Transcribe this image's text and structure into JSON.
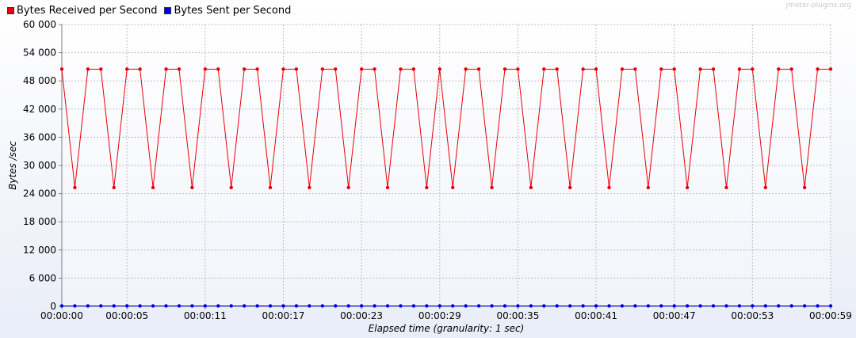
{
  "watermark": "jmeter-plugins.org",
  "colors": {
    "received": "#e8000b",
    "sent": "#0000ee",
    "grid": "#c0c0c0"
  },
  "chart_data": {
    "type": "line",
    "xlabel": "Elapsed time (granularity: 1 sec)",
    "ylabel": "Bytes /sec",
    "ylim": [
      0,
      60000
    ],
    "xlim": [
      0,
      59
    ],
    "yticks": [
      0,
      6000,
      12000,
      18000,
      24000,
      30000,
      36000,
      42000,
      48000,
      54000,
      60000
    ],
    "ytick_labels": [
      "0",
      "6 000",
      "12 000",
      "18 000",
      "24 000",
      "30 000",
      "36 000",
      "42 000",
      "48 000",
      "54 000",
      "60 000"
    ],
    "xticks": [
      0,
      5,
      11,
      17,
      23,
      29,
      35,
      41,
      47,
      53,
      59
    ],
    "xtick_labels": [
      "00:00:00",
      "00:00:05",
      "00:00:11",
      "00:00:17",
      "00:00:23",
      "00:00:29",
      "00:00:35",
      "00:00:41",
      "00:00:47",
      "00:00:53",
      "00:00:59"
    ],
    "grid": true,
    "legend_position": "top-left",
    "series": [
      {
        "name": "Bytes Received per Second",
        "color": "#e8000b",
        "x": [
          0,
          1,
          2,
          3,
          4,
          5,
          6,
          7,
          8,
          9,
          10,
          11,
          12,
          13,
          14,
          15,
          16,
          17,
          18,
          19,
          20,
          21,
          22,
          23,
          24,
          25,
          26,
          27,
          28,
          29,
          30,
          31,
          32,
          33,
          34,
          35,
          36,
          37,
          38,
          39,
          40,
          41,
          42,
          43,
          44,
          45,
          46,
          47,
          48,
          49,
          50,
          51,
          52,
          53,
          54,
          55,
          56,
          57,
          58,
          59
        ],
        "values": [
          50500,
          25300,
          50500,
          50500,
          25300,
          50500,
          50500,
          25300,
          50500,
          50500,
          25300,
          50500,
          50500,
          25300,
          50500,
          50500,
          25300,
          50500,
          50500,
          25300,
          50500,
          50500,
          25300,
          50500,
          50500,
          25300,
          50500,
          50500,
          25300,
          50500,
          25300,
          50500,
          50500,
          25300,
          50500,
          50500,
          25300,
          50500,
          50500,
          25300,
          50500,
          50500,
          25300,
          50500,
          50500,
          25300,
          50500,
          50500,
          25300,
          50500,
          50500,
          25300,
          50500,
          50500,
          25300,
          50500,
          50500,
          25300,
          50500,
          50500
        ]
      },
      {
        "name": "Bytes Sent per Second",
        "color": "#0000ee",
        "x": [
          0,
          1,
          2,
          3,
          4,
          5,
          6,
          7,
          8,
          9,
          10,
          11,
          12,
          13,
          14,
          15,
          16,
          17,
          18,
          19,
          20,
          21,
          22,
          23,
          24,
          25,
          26,
          27,
          28,
          29,
          30,
          31,
          32,
          33,
          34,
          35,
          36,
          37,
          38,
          39,
          40,
          41,
          42,
          43,
          44,
          45,
          46,
          47,
          48,
          49,
          50,
          51,
          52,
          53,
          54,
          55,
          56,
          57,
          58,
          59
        ],
        "values": [
          90,
          90,
          90,
          90,
          90,
          90,
          90,
          90,
          90,
          90,
          90,
          90,
          90,
          90,
          90,
          90,
          90,
          90,
          90,
          90,
          90,
          90,
          90,
          90,
          90,
          90,
          90,
          90,
          90,
          90,
          90,
          90,
          90,
          90,
          90,
          90,
          90,
          90,
          90,
          90,
          90,
          90,
          90,
          90,
          90,
          90,
          90,
          90,
          90,
          90,
          90,
          90,
          90,
          90,
          90,
          90,
          90,
          90,
          90,
          90
        ]
      }
    ]
  }
}
